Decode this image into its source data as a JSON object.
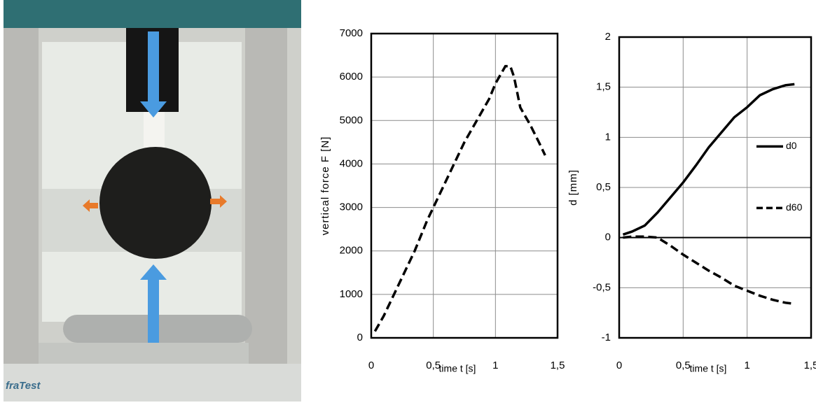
{
  "photo": {
    "logo": "fraTest"
  },
  "chart_data": [
    {
      "type": "line",
      "xlabel": "time t [s]",
      "ylabel": "vertical force F [N]",
      "x": [
        0.03,
        0.1,
        0.2,
        0.3,
        0.35,
        0.45,
        0.55,
        0.65,
        0.75,
        0.85,
        0.95,
        1.0,
        1.05,
        1.08,
        1.12,
        1.15,
        1.2,
        1.28,
        1.35,
        1.4
      ],
      "series": [
        {
          "name": null,
          "color": "#000000",
          "dash": true,
          "values": [
            150,
            500,
            1100,
            1700,
            2000,
            2700,
            3300,
            3900,
            4500,
            5000,
            5500,
            5850,
            6100,
            6250,
            6250,
            6000,
            5300,
            4900,
            4500,
            4200
          ]
        }
      ],
      "xlim": [
        0,
        1.5
      ],
      "xticks": [
        0,
        {
          "value": 0.5,
          "label": "0,5"
        },
        1,
        {
          "value": 1.5,
          "label": "1,5"
        }
      ],
      "ylim": [
        0,
        7000
      ],
      "yticks": [
        0,
        1000,
        2000,
        3000,
        4000,
        5000,
        6000,
        7000
      ],
      "grid": true,
      "legend": false
    },
    {
      "type": "line",
      "xlabel": "time t [s]",
      "ylabel": "d [mm]",
      "x": [
        0.03,
        0.1,
        0.2,
        0.3,
        0.4,
        0.5,
        0.6,
        0.7,
        0.8,
        0.9,
        1.0,
        1.1,
        1.2,
        1.3,
        1.37
      ],
      "series": [
        {
          "name": "d0",
          "color": "#000000",
          "dash": false,
          "values": [
            0.03,
            0.06,
            0.12,
            0.25,
            0.4,
            0.55,
            0.72,
            0.9,
            1.05,
            1.2,
            1.3,
            1.42,
            1.48,
            1.52,
            1.53
          ]
        },
        {
          "name": "d60",
          "color": "#000000",
          "dash": true,
          "values": [
            0,
            0.01,
            0.01,
            0,
            -0.08,
            -0.17,
            -0.25,
            -0.33,
            -0.4,
            -0.48,
            -0.53,
            -0.58,
            -0.62,
            -0.65,
            -0.66
          ]
        }
      ],
      "xlim": [
        0,
        1.5
      ],
      "xticks": [
        0,
        {
          "value": 0.5,
          "label": "0,5"
        },
        1,
        {
          "value": 1.5,
          "label": "1,5"
        }
      ],
      "ylim": [
        -1,
        2
      ],
      "yticks": [
        -1,
        {
          "value": -0.5,
          "label": "-0,5"
        },
        0,
        {
          "value": 0.5,
          "label": "0,5"
        },
        1,
        {
          "value": 1.5,
          "label": "1,5"
        },
        2
      ],
      "grid": true,
      "legend": "right"
    }
  ]
}
